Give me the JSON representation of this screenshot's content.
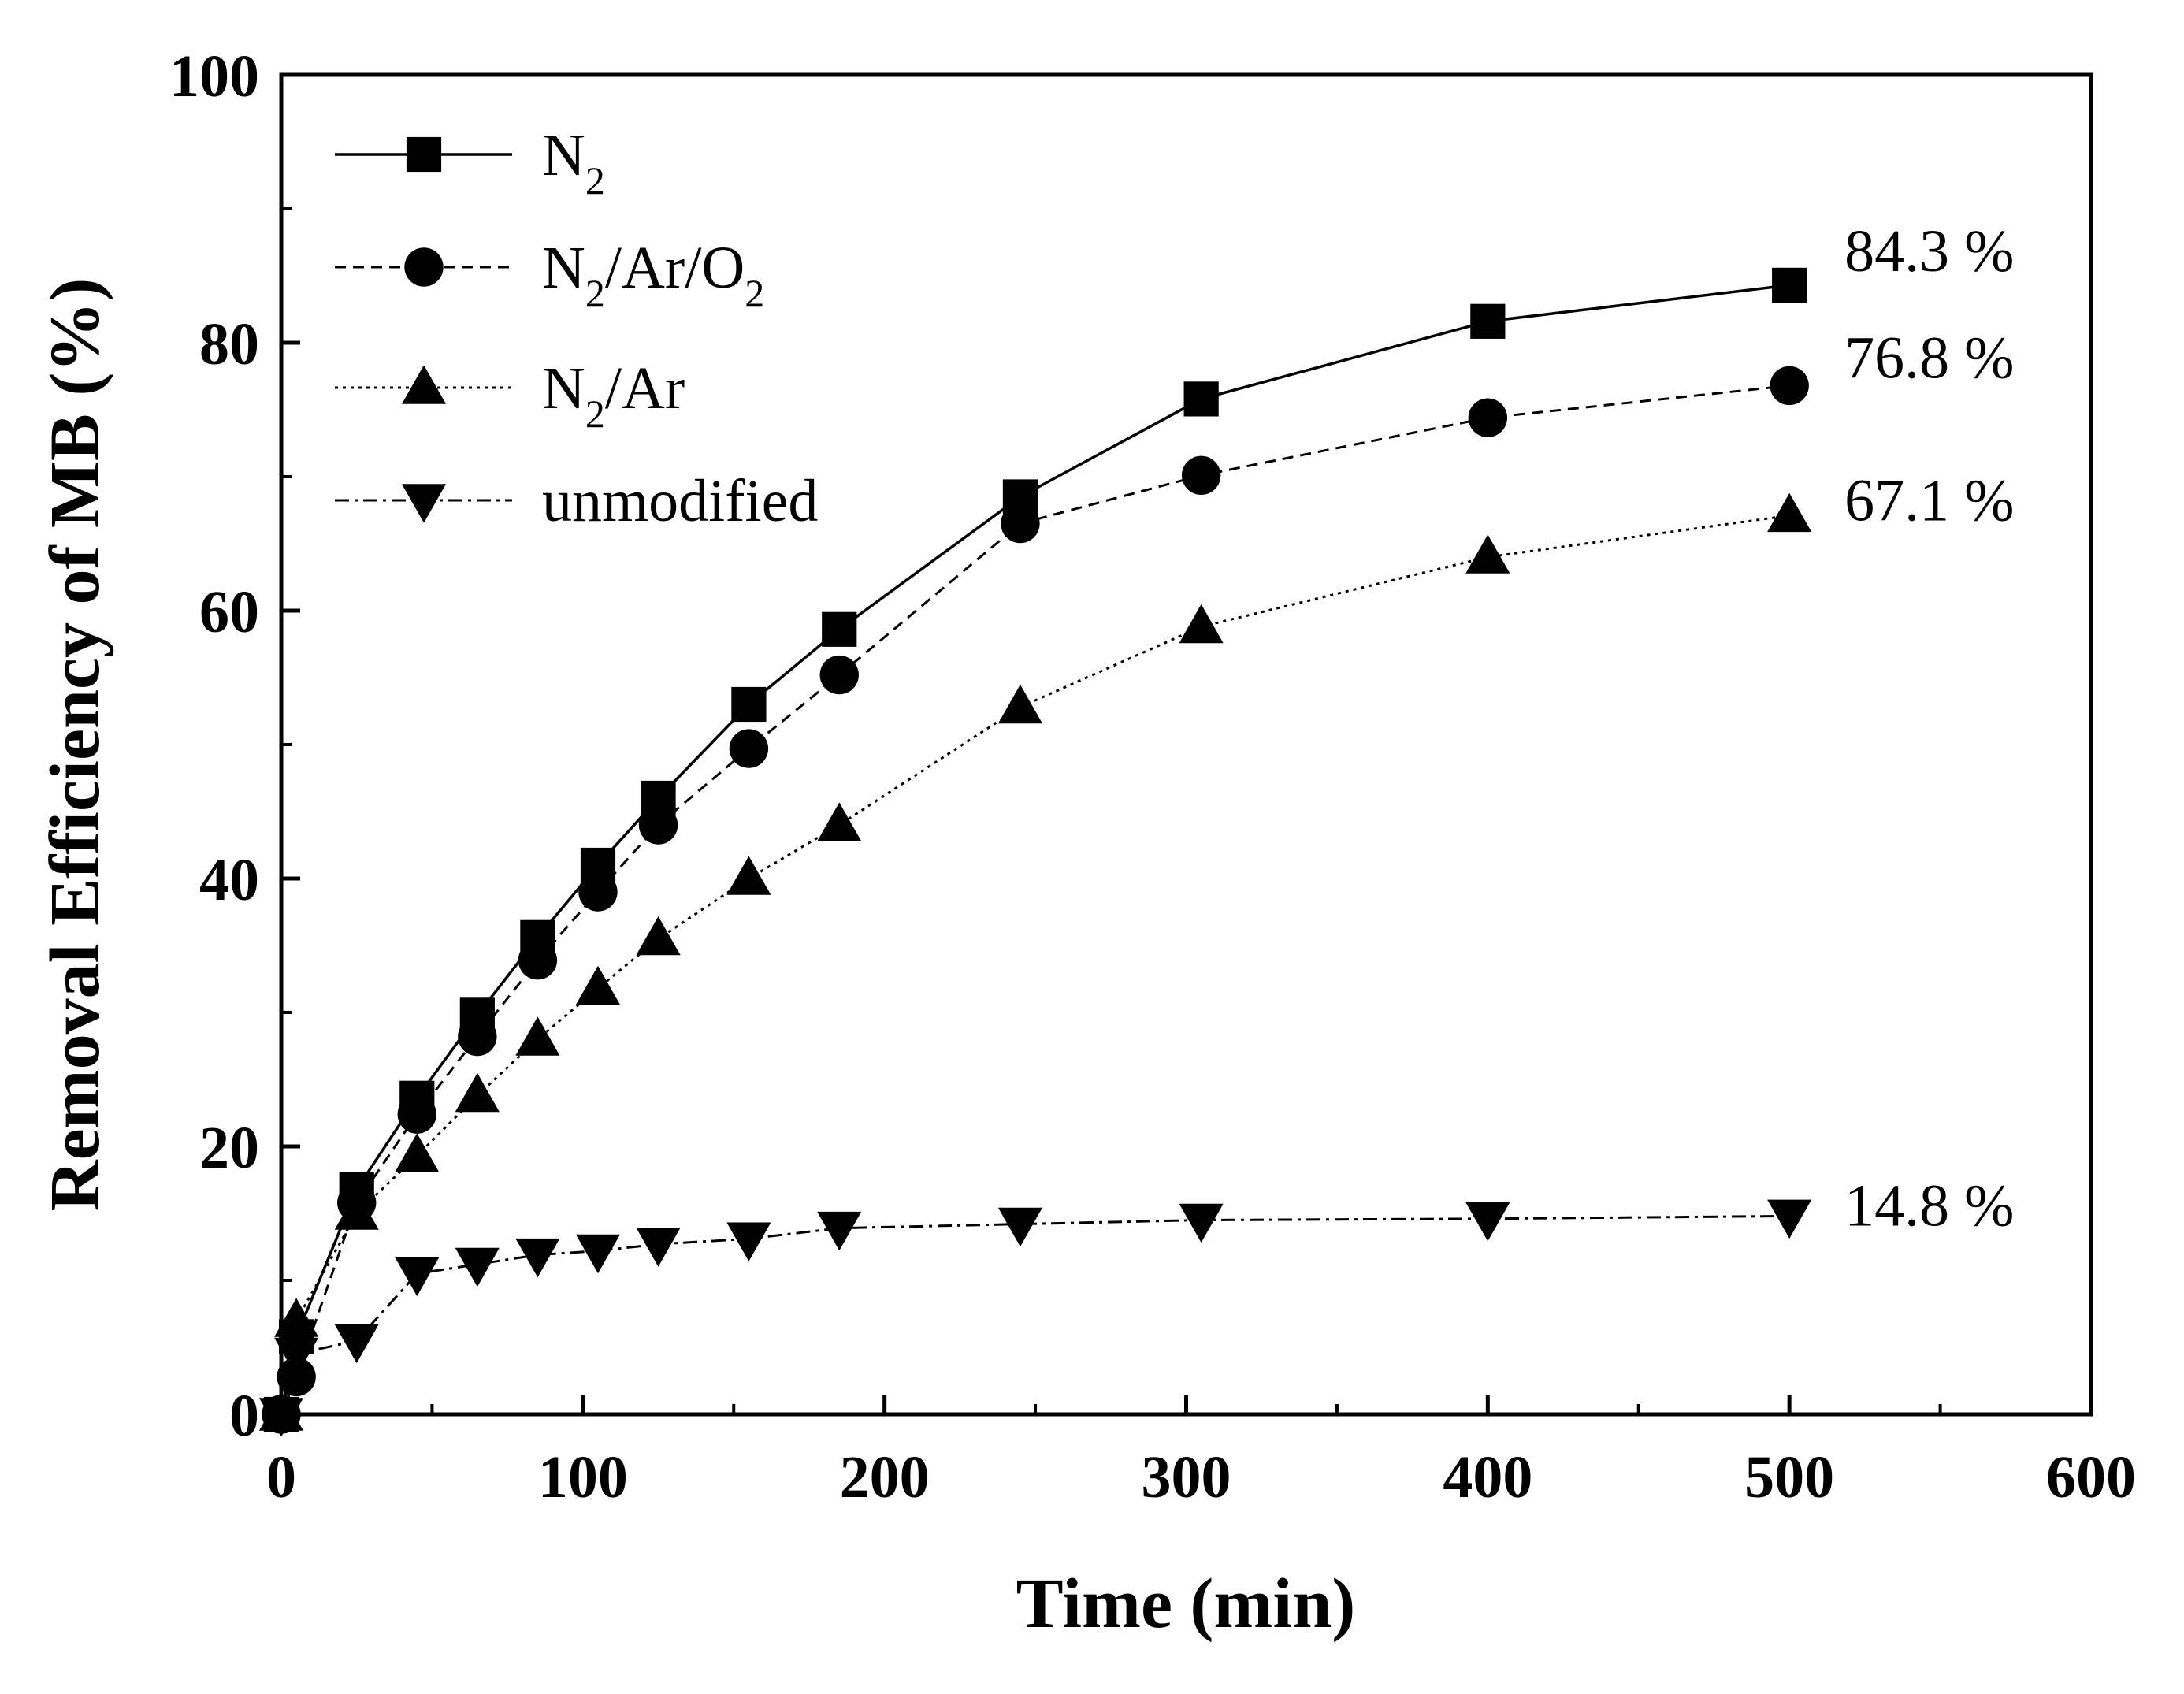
{
  "chart_data": {
    "type": "line",
    "title": "",
    "xlabel": "Time (min)",
    "ylabel": "Removal Efficiency of MB (%)",
    "xlim": [
      0,
      600
    ],
    "ylim": [
      0,
      100
    ],
    "xticks": [
      0,
      100,
      200,
      300,
      400,
      500,
      600
    ],
    "yticks": [
      0,
      20,
      40,
      60,
      80,
      100
    ],
    "grid": false,
    "legend_position": "top-left",
    "series": [
      {
        "name": "N2",
        "legend_parts": [
          "N",
          "2",
          "",
          "",
          ""
        ],
        "marker": "square",
        "line_style": "solid",
        "x": [
          0,
          5,
          25,
          45,
          65,
          85,
          105,
          125,
          155,
          185,
          245,
          305,
          400,
          500
        ],
        "y": [
          0,
          5.8,
          16.8,
          23.6,
          29.8,
          35.6,
          41.0,
          46.0,
          53.0,
          58.6,
          68.5,
          75.8,
          81.6,
          84.3
        ],
        "end_label": "84.3 %"
      },
      {
        "name": "N2/Ar/O2",
        "legend_parts": [
          "N",
          "2",
          "/Ar/O",
          "2",
          ""
        ],
        "marker": "circle",
        "line_style": "dashed",
        "x": [
          0,
          5,
          25,
          45,
          65,
          85,
          105,
          125,
          155,
          185,
          245,
          305,
          400,
          500
        ],
        "y": [
          0,
          2.8,
          15.8,
          22.4,
          28.2,
          33.9,
          39.0,
          44.0,
          49.7,
          55.2,
          66.5,
          70.1,
          74.4,
          76.8
        ],
        "end_label": "76.8 %"
      },
      {
        "name": "N2/Ar",
        "legend_parts": [
          "N",
          "2",
          "/Ar",
          "",
          ""
        ],
        "marker": "triangle-up",
        "line_style": "dotted",
        "x": [
          0,
          5,
          25,
          45,
          65,
          85,
          105,
          125,
          155,
          185,
          245,
          305,
          400,
          500
        ],
        "y": [
          0,
          7.0,
          15.0,
          19.3,
          23.8,
          28.0,
          31.8,
          35.5,
          40.0,
          44.0,
          52.8,
          58.8,
          64.0,
          67.1
        ],
        "end_label": "67.1 %"
      },
      {
        "name": "unmodified",
        "legend_parts": [
          "unmodified",
          "",
          "",
          "",
          ""
        ],
        "marker": "triangle-down",
        "line_style": "dashdot",
        "x": [
          0,
          5,
          25,
          45,
          65,
          85,
          105,
          125,
          155,
          185,
          245,
          305,
          400,
          500
        ],
        "y": [
          0,
          4.5,
          5.5,
          10.5,
          11.2,
          11.9,
          12.2,
          12.7,
          13.1,
          13.9,
          14.2,
          14.5,
          14.6,
          14.8
        ],
        "end_label": "14.8 %"
      }
    ]
  }
}
